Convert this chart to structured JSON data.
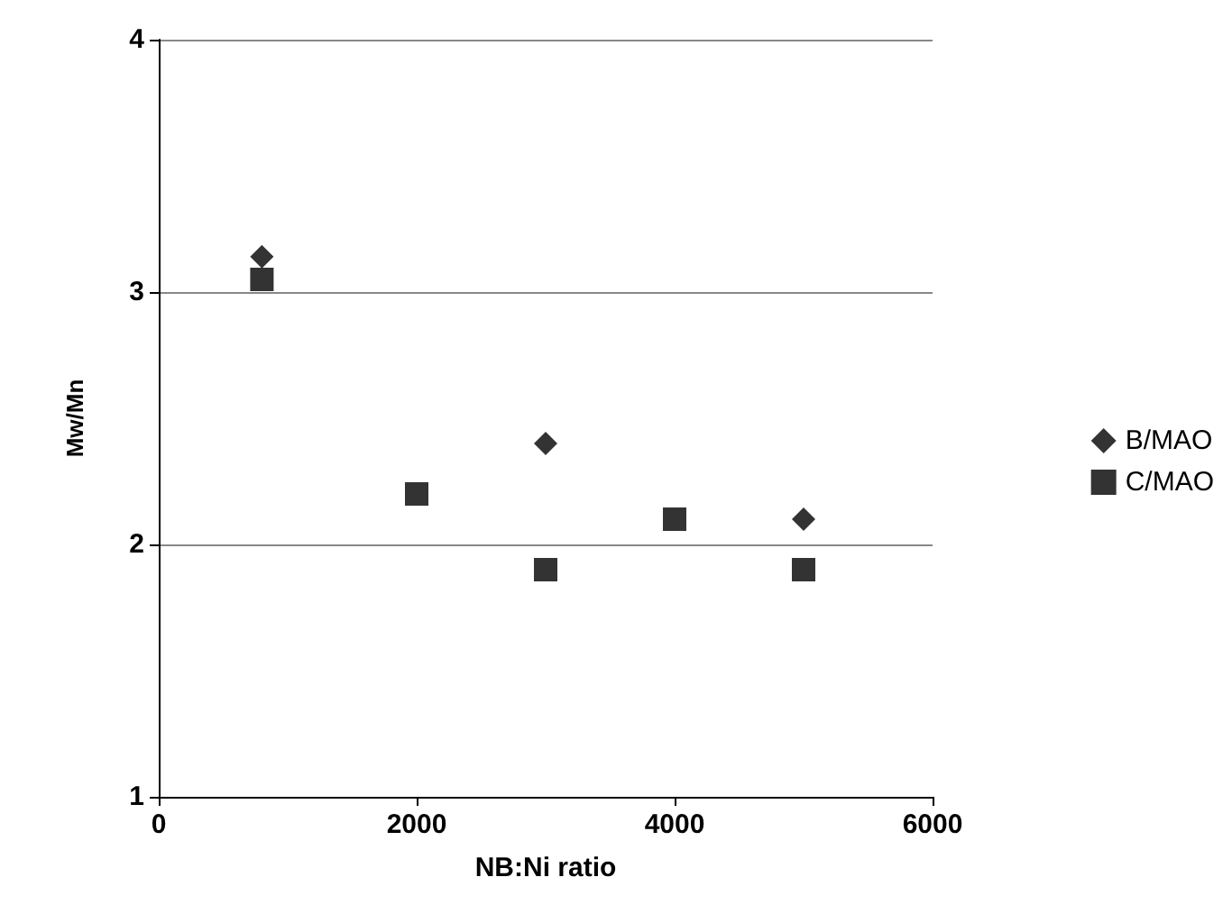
{
  "chart_data": {
    "type": "scatter",
    "xlabel": "NB:Ni ratio",
    "ylabel": "Mw/Mn",
    "xlim": [
      0,
      6000
    ],
    "xticks": [
      0,
      2000,
      4000,
      6000
    ],
    "ylim": [
      1,
      4
    ],
    "yticks": [
      1,
      2,
      3,
      4
    ],
    "grid": "y",
    "legend": "right",
    "series": [
      {
        "name": "B/MAO",
        "color": "#000000",
        "marker": "diamond",
        "x": [
          800,
          3000,
          5000
        ],
        "values": [
          3.14,
          2.4,
          2.1
        ]
      },
      {
        "name": "C/MAO",
        "color": "#000000",
        "marker": "square",
        "x": [
          800,
          2000,
          3000,
          4000,
          5000
        ],
        "values": [
          3.05,
          2.2,
          1.9,
          2.1,
          1.9
        ]
      }
    ]
  }
}
